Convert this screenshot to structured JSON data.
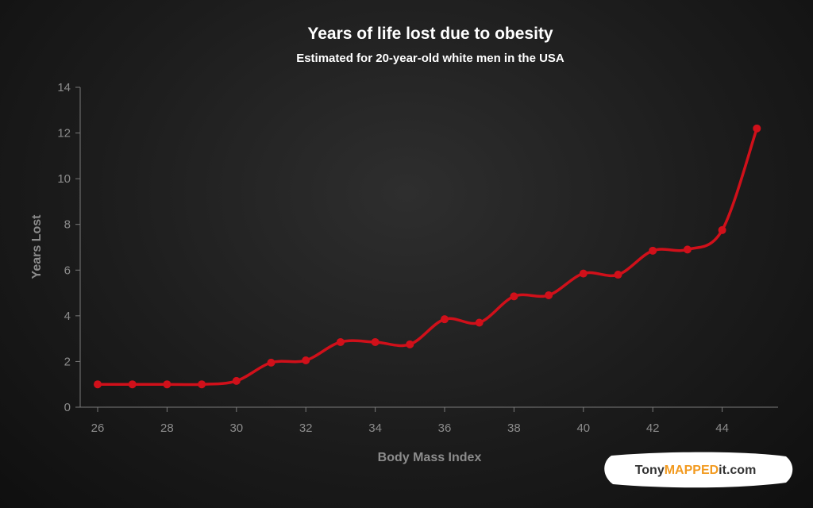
{
  "chart_data": {
    "type": "line",
    "title": "Years of life lost due to obesity",
    "subtitle": "Estimated for 20-year-old white men in the USA",
    "xlabel": "Body Mass Index",
    "ylabel": "Years Lost",
    "xlim": [
      26,
      45
    ],
    "ylim": [
      0,
      14
    ],
    "x_ticks": [
      26,
      28,
      30,
      32,
      34,
      36,
      38,
      40,
      42,
      44
    ],
    "y_ticks": [
      0,
      2,
      4,
      6,
      8,
      10,
      12,
      14
    ],
    "grid": false,
    "line_color": "#d0101a",
    "series": [
      {
        "x": [
          26,
          27,
          28,
          29,
          30,
          31,
          32,
          33,
          34,
          35,
          36,
          37,
          38,
          39,
          40,
          41,
          42,
          43,
          44,
          45
        ],
        "values": [
          1.0,
          1.0,
          1.0,
          1.0,
          1.15,
          1.95,
          2.05,
          2.85,
          2.85,
          2.75,
          3.85,
          3.7,
          4.85,
          4.9,
          5.85,
          5.8,
          6.85,
          6.9,
          7.75,
          12.2
        ]
      }
    ]
  },
  "logo": {
    "part1": "Tony",
    "part2": "MAPPED",
    "part3": "it.com",
    "color_dark": "#333333",
    "color_accent": "#f29a1f"
  }
}
